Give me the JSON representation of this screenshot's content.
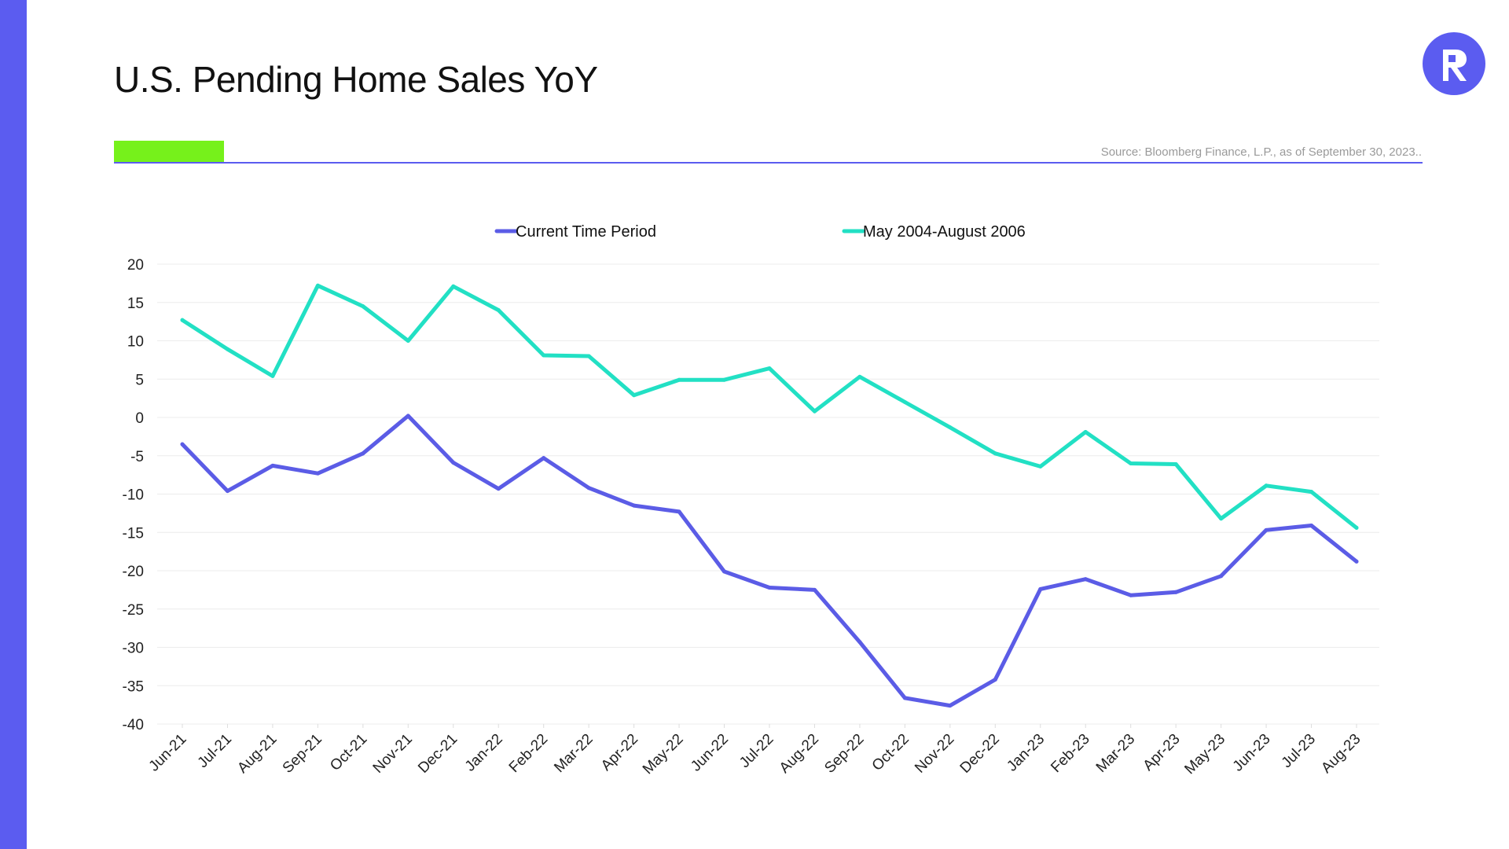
{
  "page": {
    "title": "U.S. Pending Home Sales YoY",
    "source": "Source: Bloomberg Finance, L.P., as of September 30, 2023..",
    "accent_color": "#76f11b",
    "brand_color": "#5b5cf0",
    "logo_icon": "r-logo-icon"
  },
  "chart_data": {
    "type": "line",
    "title": "U.S. Pending Home Sales YoY",
    "xlabel": "",
    "ylabel": "",
    "ylim": [
      -40,
      20
    ],
    "yticks": [
      20,
      15,
      10,
      5,
      0,
      -5,
      -10,
      -15,
      -20,
      -25,
      -30,
      -35,
      -40
    ],
    "grid": true,
    "legend_position": "top",
    "x": [
      "Jun-21",
      "Jul-21",
      "Aug-21",
      "Sep-21",
      "Oct-21",
      "Nov-21",
      "Dec-21",
      "Jan-22",
      "Feb-22",
      "Mar-22",
      "Apr-22",
      "May-22",
      "Jun-22",
      "Jul-22",
      "Aug-22",
      "Sep-22",
      "Oct-22",
      "Nov-22",
      "Dec-22",
      "Jan-23",
      "Feb-23",
      "Mar-23",
      "Apr-23",
      "May-23",
      "Jun-23",
      "Jul-23",
      "Aug-23"
    ],
    "series": [
      {
        "name": "Current Time Period",
        "color": "#5b5ce6",
        "values": [
          -3.5,
          -9.6,
          -6.3,
          -7.3,
          -4.7,
          0.2,
          -5.9,
          -9.3,
          -5.3,
          -9.2,
          -11.5,
          -12.3,
          -20.1,
          -22.2,
          -22.5,
          -29.3,
          -36.6,
          -37.6,
          -34.2,
          -22.4,
          -21.1,
          -23.2,
          -22.8,
          -20.7,
          -14.7,
          -14.1,
          -18.8
        ]
      },
      {
        "name": "May 2004-August 2006",
        "color": "#22e0c4",
        "values": [
          12.7,
          8.9,
          5.4,
          17.2,
          14.5,
          10.0,
          17.1,
          14.0,
          8.1,
          8.0,
          2.9,
          4.9,
          4.9,
          6.4,
          0.8,
          5.3,
          2.0,
          -1.3,
          -4.7,
          -6.4,
          -1.9,
          -6.0,
          -6.1,
          -13.2,
          -8.9,
          -9.7,
          -14.4
        ]
      }
    ]
  }
}
